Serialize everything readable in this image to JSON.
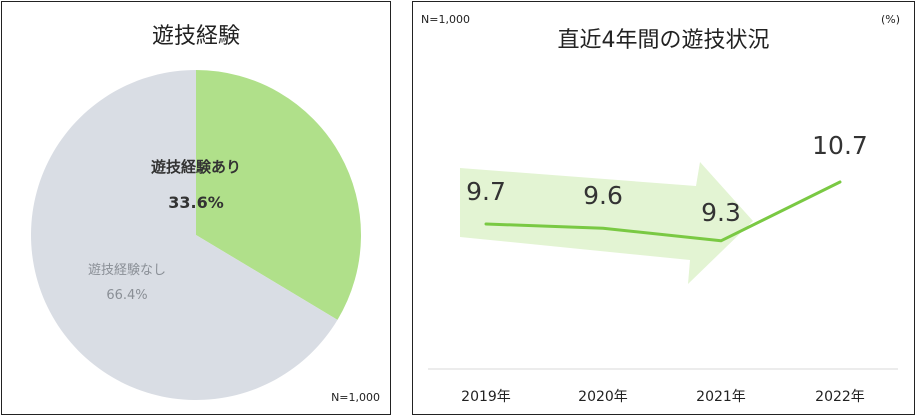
{
  "chart_data": [
    {
      "type": "pie",
      "title": "遊技経験",
      "note": "N=1,000",
      "slices": [
        {
          "label": "遊技経験あり",
          "value": 33.6,
          "value_label": "33.6%",
          "color": "#b0e08a"
        },
        {
          "label": "遊技経験なし",
          "value": 66.4,
          "value_label": "66.4%",
          "color": "#d9dde4"
        }
      ]
    },
    {
      "type": "line",
      "title": "直近4年間の遊技状況",
      "note": "N=1,000",
      "unit": "(%)",
      "categories": [
        "2019年",
        "2020年",
        "2021年",
        "2022年"
      ],
      "series": [
        {
          "values": [
            9.7,
            9.6,
            9.3,
            10.7
          ],
          "labels": [
            "9.7",
            "9.6",
            "9.3",
            "10.7"
          ],
          "color": "#7ac943"
        }
      ],
      "trend_arrow_color": "#e3f4d3"
    }
  ]
}
